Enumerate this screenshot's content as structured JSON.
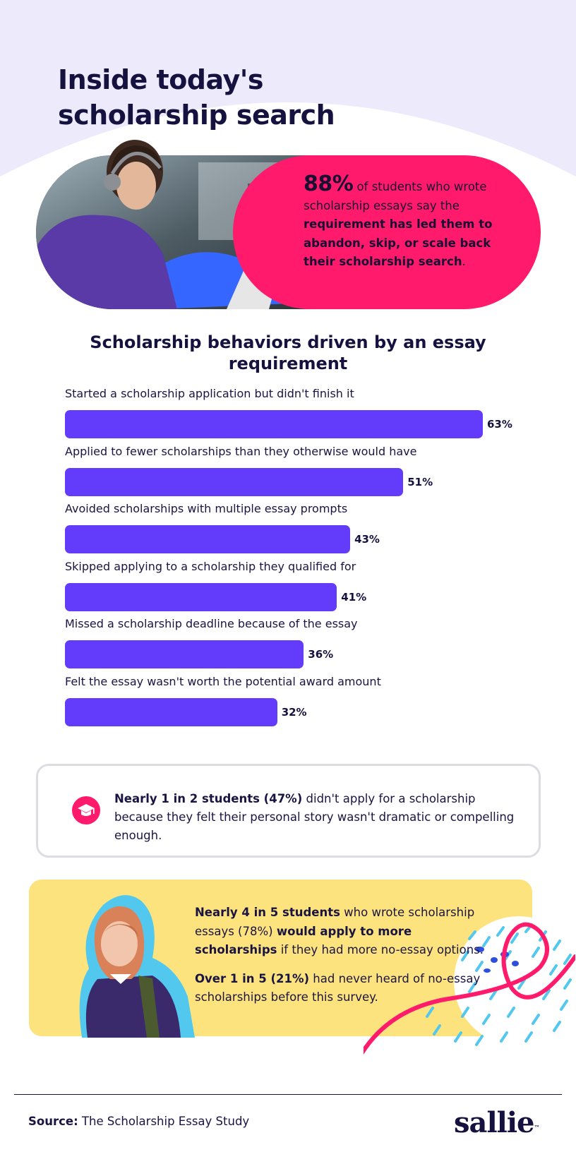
{
  "header": {
    "title": "Inside today's scholarship search"
  },
  "hero": {
    "stat": "88%",
    "text_1": " of students who wrote scholarship essays say the ",
    "text_bold": "requirement has led them to abandon, skip, or scale back their scholarship search",
    "text_2": "."
  },
  "chart_data": {
    "type": "bar",
    "orientation": "horizontal",
    "title": "Scholarship behaviors driven by an essay requirement",
    "categories": [
      "Started a scholarship application but didn't finish it",
      "Applied to fewer scholarships than they otherwise would have",
      "Avoided scholarships with multiple essay prompts",
      "Skipped applying to a scholarship they qualified for",
      "Missed a scholarship deadline because of the essay",
      "Felt the essay wasn't worth the potential award amount"
    ],
    "values": [
      63,
      51,
      43,
      41,
      36,
      32
    ],
    "value_labels": [
      "63%",
      "51%",
      "43%",
      "41%",
      "36%",
      "32%"
    ],
    "unit": "%",
    "bar_color": "#633bfa"
  },
  "callout": {
    "icon": "graduation-cap-icon",
    "bold": "Nearly 1 in 2 students (47%)",
    "text": " didn't apply for a scholarship because they felt their personal story wasn't dramatic or compelling enough."
  },
  "highlight": {
    "p1_bold_1": "Nearly 4 in 5 students",
    "p1_text_1": " who wrote scholarship essays (78%) ",
    "p1_bold_2": "would apply to more scholarships",
    "p1_text_2": " if they had more no-essay options.",
    "p2_bold": "Over 1 in 5 (21%)",
    "p2_text": " had never heard of no-essay scholarships before this survey."
  },
  "footer": {
    "source_label": "Source:",
    "source_text": " The Scholarship Essay Study",
    "logo": "sallie",
    "logo_mark": "™"
  },
  "colors": {
    "accent_pink": "#ff1a6b",
    "bar_purple": "#633bfa",
    "lavender_bg": "#eceafb",
    "yellow": "#fce37e",
    "navy": "#16123f"
  }
}
